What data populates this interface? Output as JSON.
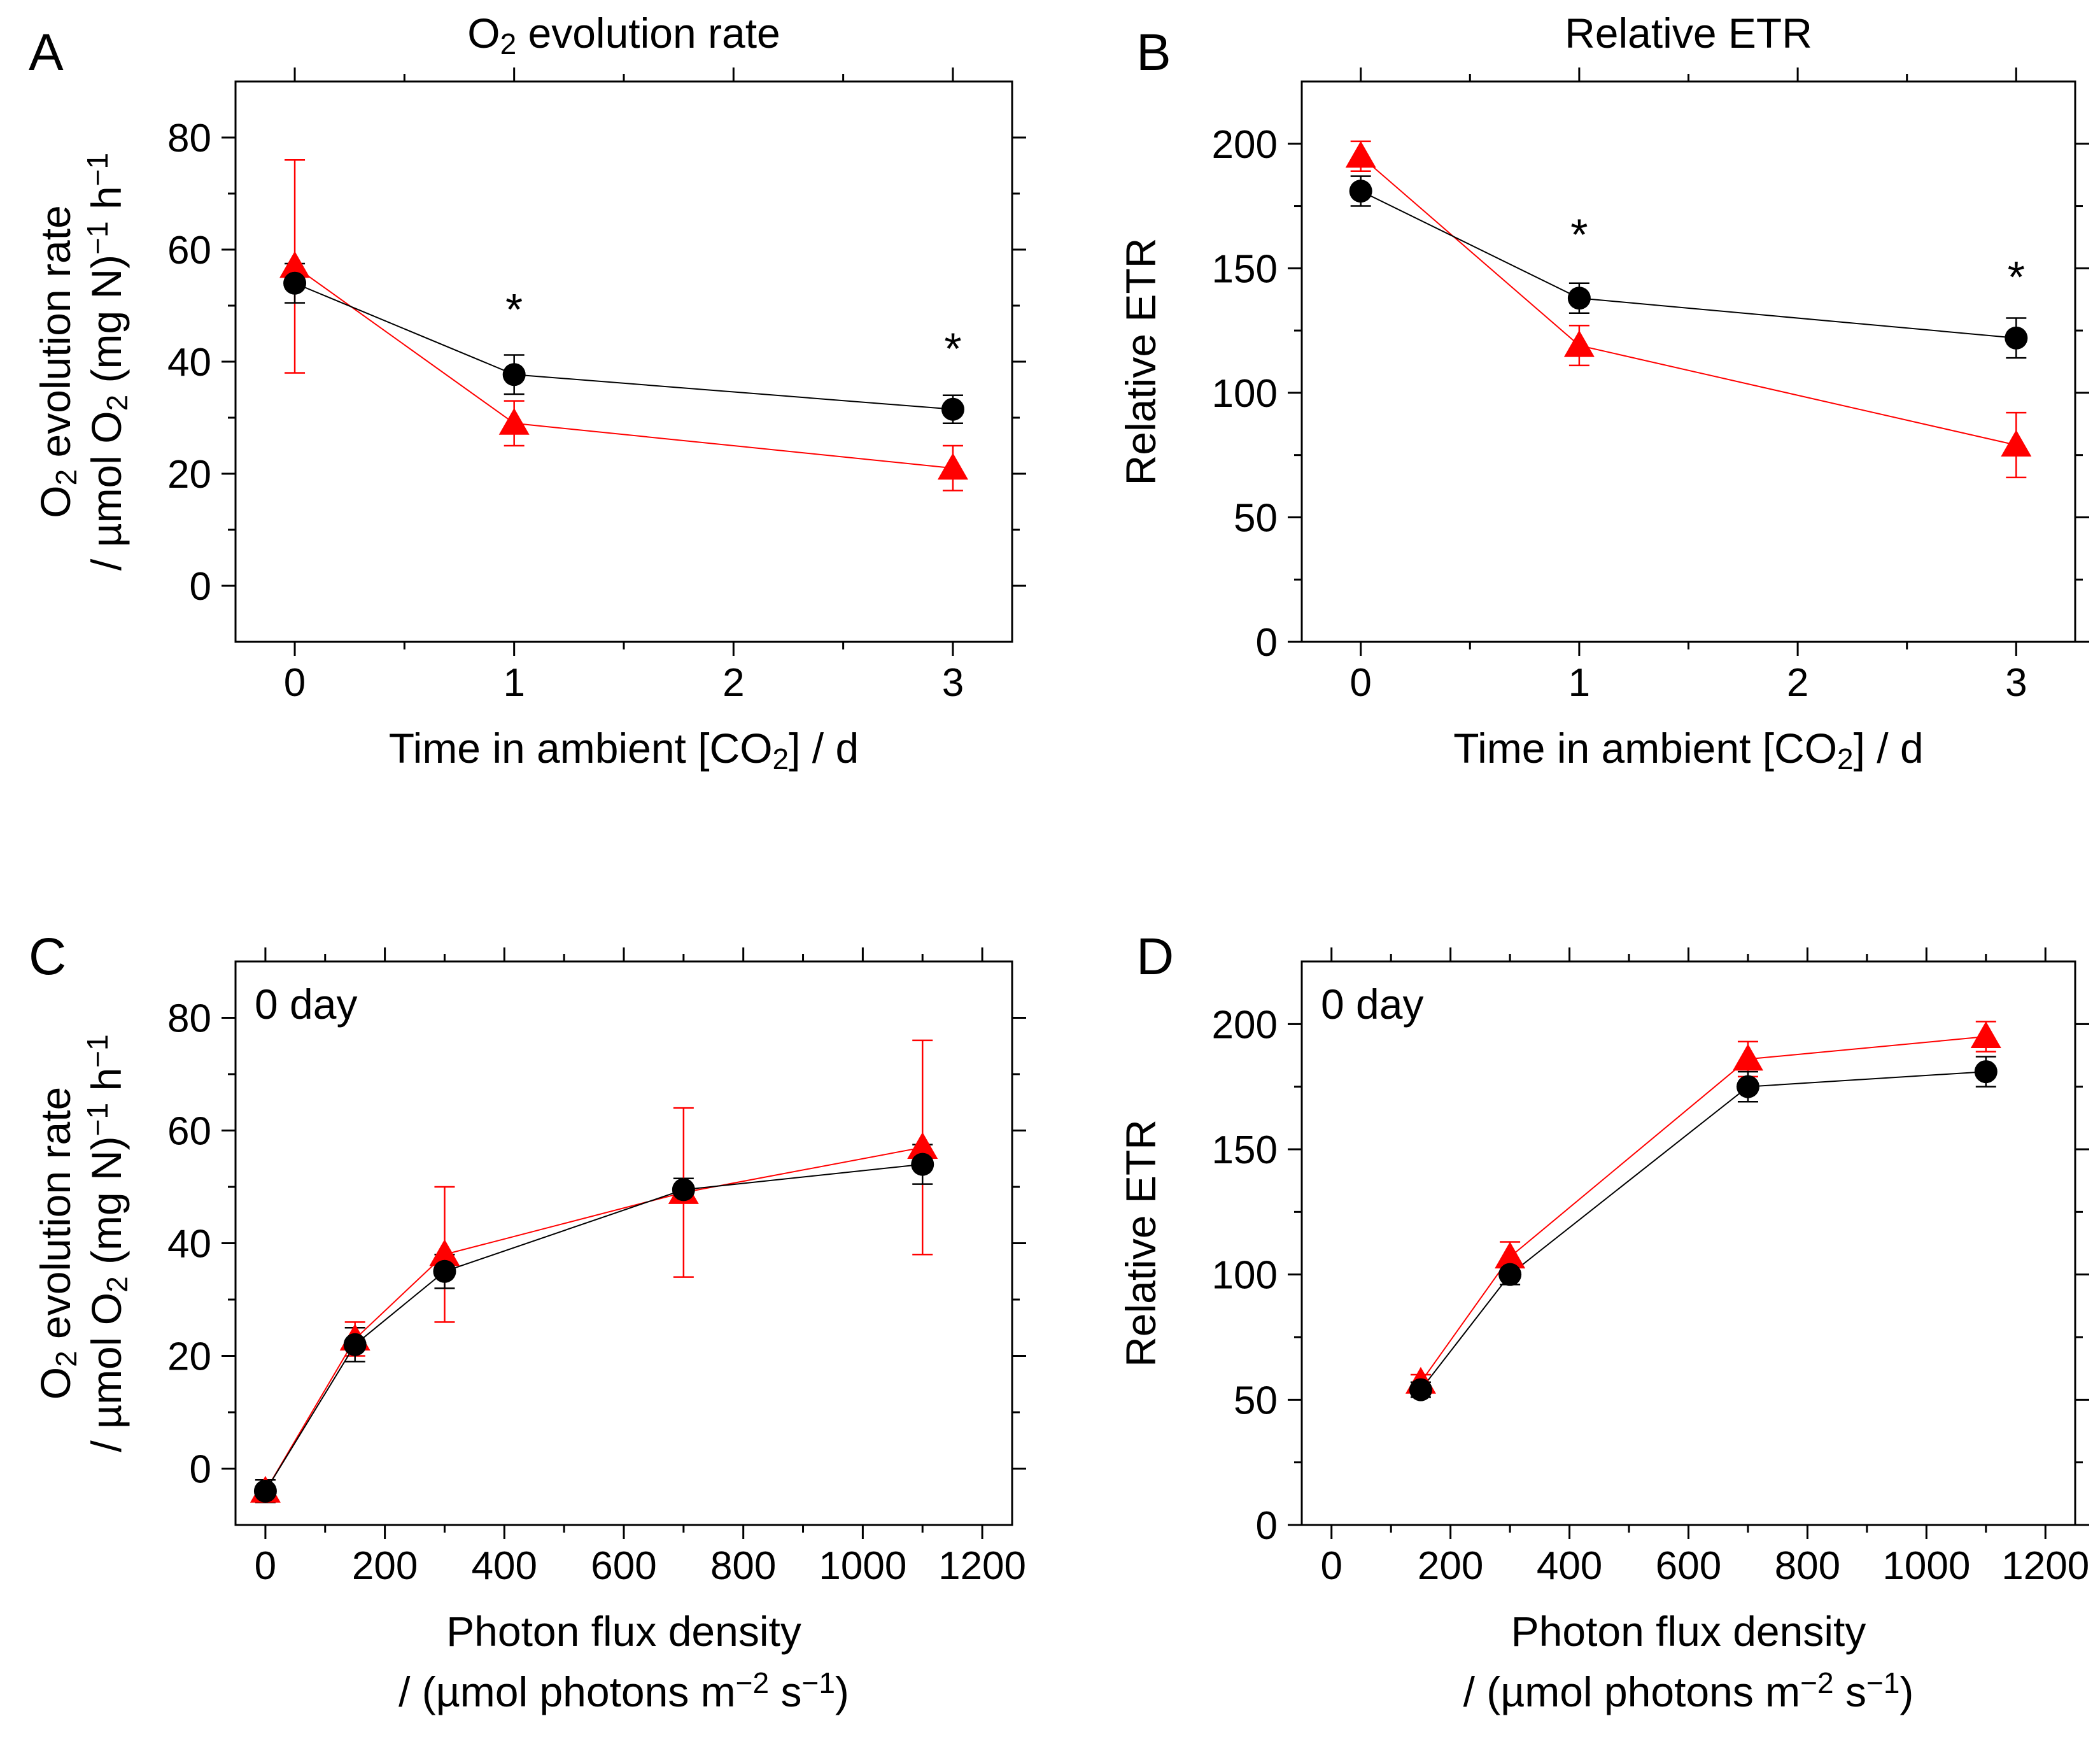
{
  "chart_data": [
    {
      "panel_label": "A",
      "type": "line",
      "title": "O2 evolution rate",
      "title_parts": [
        "O",
        "2",
        " evolution rate"
      ],
      "xlabel": "Time in ambient [CO2] / d",
      "xlabel_parts": [
        "Time in ambient [CO",
        "2",
        "] / d"
      ],
      "ylabel": "O2 evolution rate / µmol O2 (mg N)−1 h−1",
      "ylabel_line1_parts": [
        "O",
        "2",
        " evolution rate"
      ],
      "ylabel_line2_parts": [
        "/ µmol O",
        "2",
        " (mg N)",
        "−1",
        " h",
        "−1"
      ],
      "xlim": [
        -0.27,
        3.27
      ],
      "ylim": [
        -10,
        90
      ],
      "xticks": [
        0,
        1,
        2,
        3
      ],
      "xtick_labels": [
        "0",
        "1",
        "2",
        "3"
      ],
      "yticks": [
        0,
        20,
        40,
        60,
        80
      ],
      "ytick_labels": [
        "0",
        "20",
        "40",
        "60",
        "80"
      ],
      "inset_text": "",
      "annotations": [
        {
          "x": 1,
          "y": 50,
          "text": "*"
        },
        {
          "x": 3,
          "y": 43,
          "text": "*"
        }
      ],
      "series": [
        {
          "name": "black circles",
          "color": "#000000",
          "marker": "circle",
          "x": [
            0,
            1,
            3
          ],
          "y": [
            54,
            37.7,
            31.5
          ],
          "err": [
            3.5,
            3.5,
            2.5
          ]
        },
        {
          "name": "red triangles",
          "color": "#ff0000",
          "marker": "triangle",
          "x": [
            0,
            1,
            3
          ],
          "y": [
            57,
            29,
            21
          ],
          "err": [
            19,
            4,
            4
          ]
        }
      ]
    },
    {
      "panel_label": "B",
      "type": "line",
      "title": "Relative ETR",
      "title_parts": [
        "Relative ETR"
      ],
      "xlabel": "Time in ambient [CO2] / d",
      "xlabel_parts": [
        "Time in ambient [CO",
        "2",
        "] / d"
      ],
      "ylabel": "Relative ETR",
      "ylabel_line1_parts": [
        "Relative ETR"
      ],
      "ylabel_line2_parts": [],
      "xlim": [
        -0.27,
        3.27
      ],
      "ylim": [
        0,
        225
      ],
      "xticks": [
        0,
        1,
        2,
        3
      ],
      "xtick_labels": [
        "0",
        "1",
        "2",
        "3"
      ],
      "yticks": [
        0,
        50,
        100,
        150,
        200
      ],
      "ytick_labels": [
        "0",
        "50",
        "100",
        "150",
        "200"
      ],
      "inset_text": "",
      "annotations": [
        {
          "x": 1,
          "y": 165,
          "text": "*"
        },
        {
          "x": 3,
          "y": 148,
          "text": "*"
        }
      ],
      "series": [
        {
          "name": "black circles",
          "color": "#000000",
          "marker": "circle",
          "x": [
            0,
            1,
            3
          ],
          "y": [
            181,
            138,
            122
          ],
          "err": [
            6,
            6,
            8
          ]
        },
        {
          "name": "red triangles",
          "color": "#ff0000",
          "marker": "triangle",
          "x": [
            0,
            1,
            3
          ],
          "y": [
            195,
            119,
            79
          ],
          "err": [
            6,
            8,
            13
          ]
        }
      ]
    },
    {
      "panel_label": "C",
      "type": "line",
      "title": "",
      "title_parts": [],
      "xlabel": "Photon flux density / (µmol photons m−2 s−1)",
      "xlabel_parts": [
        "Photon flux density"
      ],
      "xlabel_line2_parts": [
        "/ (µmol photons m",
        "−2",
        " s",
        "−1",
        ")"
      ],
      "ylabel": "O2 evolution rate / µmol O2 (mg N)−1 h−1",
      "ylabel_line1_parts": [
        "O",
        "2",
        " evolution rate"
      ],
      "ylabel_line2_parts": [
        "/ µmol O",
        "2",
        " (mg N)",
        "−1",
        " h",
        "−1"
      ],
      "xlim": [
        -50,
        1250
      ],
      "ylim": [
        -10,
        90
      ],
      "xticks": [
        0,
        200,
        400,
        600,
        800,
        1000,
        1200
      ],
      "xtick_labels": [
        "0",
        "200",
        "400",
        "600",
        "800",
        "1000",
        "1200"
      ],
      "yticks": [
        0,
        20,
        40,
        60,
        80
      ],
      "ytick_labels": [
        "0",
        "20",
        "40",
        "60",
        "80"
      ],
      "inset_text": "0 day",
      "annotations": [],
      "series": [
        {
          "name": "black circles",
          "color": "#000000",
          "marker": "circle",
          "x": [
            0,
            150,
            300,
            700,
            1100
          ],
          "y": [
            -4,
            22,
            35,
            49.5,
            54
          ],
          "err": [
            2,
            3,
            3,
            2,
            3.5
          ]
        },
        {
          "name": "red triangles",
          "color": "#ff0000",
          "marker": "triangle",
          "x": [
            0,
            150,
            300,
            700,
            1100
          ],
          "y": [
            -4,
            23,
            38,
            49,
            57
          ],
          "err": [
            2,
            3,
            12,
            15,
            19
          ]
        }
      ]
    },
    {
      "panel_label": "D",
      "type": "line",
      "title": "",
      "title_parts": [],
      "xlabel": "Photon flux density / (µmol photons m−2 s−1)",
      "xlabel_parts": [
        "Photon flux density"
      ],
      "xlabel_line2_parts": [
        "/ (µmol photons m",
        "−2",
        " s",
        "−1",
        ")"
      ],
      "ylabel": "Relative ETR",
      "ylabel_line1_parts": [
        "Relative ETR"
      ],
      "ylabel_line2_parts": [],
      "xlim": [
        -50,
        1250
      ],
      "ylim": [
        0,
        225
      ],
      "xticks": [
        0,
        200,
        400,
        600,
        800,
        1000,
        1200
      ],
      "xtick_labels": [
        "0",
        "200",
        "400",
        "600",
        "800",
        "1000",
        "1200"
      ],
      "yticks": [
        0,
        50,
        100,
        150,
        200
      ],
      "ytick_labels": [
        "0",
        "50",
        "100",
        "150",
        "200"
      ],
      "inset_text": "0 day",
      "annotations": [],
      "series": [
        {
          "name": "black circles",
          "color": "#000000",
          "marker": "circle",
          "x": [
            150,
            300,
            700,
            1100
          ],
          "y": [
            54,
            100,
            175,
            181
          ],
          "err": [
            3,
            4,
            6,
            6
          ]
        },
        {
          "name": "red triangles",
          "color": "#ff0000",
          "marker": "triangle",
          "x": [
            150,
            300,
            700,
            1100
          ],
          "y": [
            57,
            107,
            186,
            195
          ],
          "err": [
            3,
            6,
            7,
            6
          ]
        }
      ]
    }
  ]
}
